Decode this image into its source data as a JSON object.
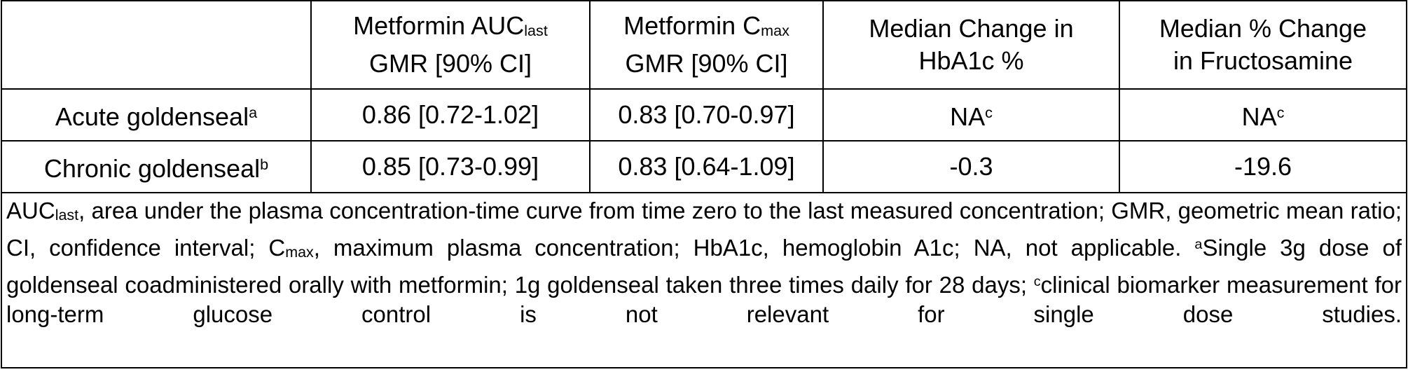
{
  "table": {
    "header": [
      null,
      {
        "text": "Metformin AUC",
        "sub": "last",
        "line2": "GMR [90% CI]"
      },
      {
        "text": "Metformin C",
        "sub": "max",
        "line2": "GMR [90% CI]"
      },
      {
        "text": "Median Change in",
        "line2": "HbA1c %"
      },
      {
        "text": "Median % Change",
        "line2": "in Fructosamine"
      }
    ],
    "rows": [
      [
        {
          "text": "Acute goldenseal",
          "sup": "a"
        },
        {
          "text": "0.86 [0.72-1.02]"
        },
        {
          "text": "0.83 [0.70-0.97]"
        },
        {
          "text": "NA",
          "sup": "c"
        },
        {
          "text": "NA",
          "sup": "c"
        }
      ],
      [
        {
          "text": "Chronic goldenseal",
          "sup": "b"
        },
        {
          "text": "0.85 [0.73-0.99]"
        },
        {
          "text": "0.83 [0.64-1.09]"
        },
        {
          "text": "-0.3"
        },
        {
          "text": "-19.6"
        }
      ]
    ],
    "footnote": [
      {
        "text": "AUC"
      },
      {
        "sub": "last"
      },
      {
        "text": ", area under the plasma concentration-time curve from time zero to the last measured concentration; GMR, geometric mean ratio; CI, confidence interval; C"
      },
      {
        "sub": "max"
      },
      {
        "text": ", maximum plasma concentration; HbA1c, hemoglobin A1c; NA, not applicable. "
      },
      {
        "sup": "a"
      },
      {
        "text": "Single 3g dose of goldenseal coadministered orally with metformin; 1g goldenseal taken three times daily for 28 days; "
      },
      {
        "sup": "c"
      },
      {
        "text": "clinical biomarker measurement for long-term glucose control is not relevant for single dose studies."
      }
    ]
  }
}
